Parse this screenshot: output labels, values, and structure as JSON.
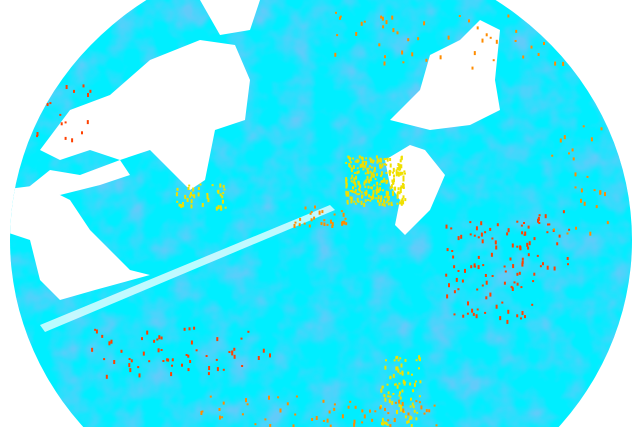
{
  "radar": {
    "colors": {
      "background": "#ffffff",
      "echo_low": "#00eeff",
      "echo_mid": "#1ea0f0",
      "echo_strong": "#f0e000",
      "echo_intense": "#ff4000",
      "echo_peak": "#ff8c00"
    }
  }
}
